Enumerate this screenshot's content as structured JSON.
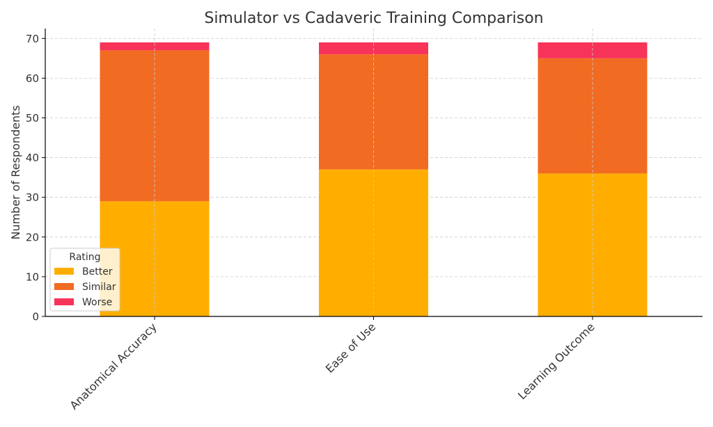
{
  "chart_data": {
    "type": "bar",
    "stacked": true,
    "title": "Simulator vs Cadaveric Training Comparison",
    "xlabel": "",
    "ylabel": "Number of Respondents",
    "categories": [
      "Anatomical Accuracy",
      "Ease of Use",
      "Learning Outcome"
    ],
    "series": [
      {
        "name": "Better",
        "color": "#ffae00",
        "values": [
          29,
          37,
          36
        ]
      },
      {
        "name": "Similar",
        "color": "#f26b22",
        "values": [
          38,
          29,
          29
        ]
      },
      {
        "name": "Worse",
        "color": "#f73359",
        "values": [
          2,
          3,
          4
        ]
      }
    ],
    "ylim": [
      0,
      72.5
    ],
    "yticks": [
      0,
      10,
      20,
      30,
      40,
      50,
      60,
      70
    ],
    "grid": true,
    "legend": {
      "title": "Rating",
      "placement": "bottom-left"
    }
  }
}
